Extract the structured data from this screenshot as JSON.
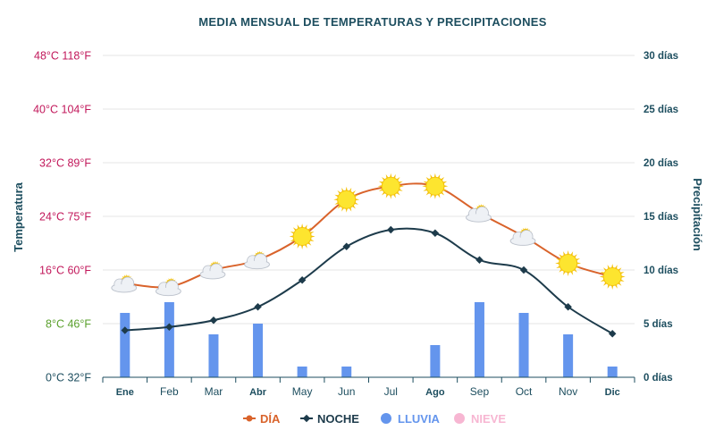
{
  "chart_data": {
    "type": "line+bar",
    "title": "MEDIA MENSUAL DE TEMPERATURAS Y PRECIPITACIONES",
    "categories": [
      "Ene",
      "Feb",
      "Mar",
      "Abr",
      "May",
      "Jun",
      "Jul",
      "Ago",
      "Sep",
      "Oct",
      "Nov",
      "Dic"
    ],
    "bold_categories": [
      "Ene",
      "Abr",
      "Ago",
      "Dic"
    ],
    "left_axis": {
      "label": "Temperatura",
      "range_c": [
        0,
        48
      ],
      "ticks": [
        {
          "c": 0,
          "label": "0°C 32°F",
          "color": "#1d4e5f"
        },
        {
          "c": 8,
          "label": "8°C 46°F",
          "color": "#5aa02c"
        },
        {
          "c": 16,
          "label": "16°C 60°F",
          "color": "#c2185b"
        },
        {
          "c": 24,
          "label": "24°C 75°F",
          "color": "#c2185b"
        },
        {
          "c": 32,
          "label": "32°C 89°F",
          "color": "#c2185b"
        },
        {
          "c": 40,
          "label": "40°C 104°F",
          "color": "#c2185b"
        },
        {
          "c": 48,
          "label": "48°C 118°F",
          "color": "#c2185b"
        }
      ]
    },
    "right_axis": {
      "label": "Precipitación",
      "range": [
        0,
        30
      ],
      "ticks": [
        {
          "v": 0,
          "label": "0 días"
        },
        {
          "v": 5,
          "label": "5 días"
        },
        {
          "v": 10,
          "label": "10 días"
        },
        {
          "v": 15,
          "label": "15 días"
        },
        {
          "v": 20,
          "label": "20 días"
        },
        {
          "v": 25,
          "label": "25 días"
        },
        {
          "v": 30,
          "label": "30 días"
        }
      ]
    },
    "series": [
      {
        "name": "DÍA",
        "type": "line",
        "axis": "left",
        "color": "#d9632b",
        "values": [
          14,
          13.5,
          16,
          17.5,
          21,
          26.5,
          28.5,
          28.5,
          24.5,
          21,
          17,
          15
        ]
      },
      {
        "name": "NOCHE",
        "type": "line",
        "axis": "left",
        "color": "#1d3b4b",
        "values": [
          7,
          7.5,
          8.5,
          10.5,
          14.5,
          19.5,
          22,
          21.5,
          17.5,
          16,
          10.5,
          6.5
        ]
      },
      {
        "name": "LLUVIA",
        "type": "bar",
        "axis": "right",
        "color": "#6495ed",
        "values": [
          6,
          7,
          4,
          5,
          1,
          1,
          0,
          3,
          7,
          6,
          4,
          1
        ]
      },
      {
        "name": "NIEVE",
        "type": "bar",
        "axis": "right",
        "color": "#f7b6d2",
        "values": [
          0,
          0,
          0,
          0,
          0,
          0,
          0,
          0,
          0,
          0,
          0,
          0
        ]
      }
    ],
    "weather_icons": [
      "partly-cloudy",
      "partly-cloudy",
      "partly-cloudy",
      "partly-cloudy",
      "sunny",
      "sunny",
      "sunny",
      "sunny",
      "partly-cloudy",
      "partly-cloudy",
      "sunny",
      "sunny"
    ],
    "legend_position": "bottom-center"
  }
}
